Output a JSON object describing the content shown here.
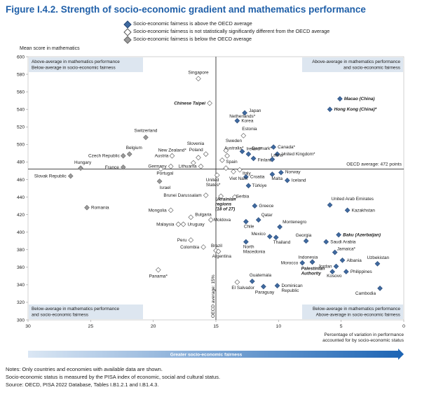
{
  "figure": {
    "title": "Figure I.4.2. Strength of socio-economic gradient and mathematics performance"
  },
  "legend": [
    {
      "label": "Socio-economic fairness is above the OECD average",
      "color": "#3f6aa0"
    },
    {
      "label": "Socio-economic fairness is not statistically significantly different from the OECD average",
      "color": "#ffffff"
    },
    {
      "label": "Socio-economic fairness is below the OECD average",
      "color": "#9a9a9a"
    }
  ],
  "notes": [
    "Notes: Only countries and economies with available data are shown.",
    "Socio-economic status is measured by the PISA index of economic, social and cultural status.",
    "Source: OECD, PISA 2022 Database, Tables I.B1.2.1 and I.B1.4.3."
  ],
  "chart_data": {
    "type": "scatter",
    "ylabel": "Mean score in mathematics",
    "xlabel": "Percentage of variation in performance accounted for by socio-economic status",
    "arrow_label": "Greater socio-economic fairness",
    "xlim": [
      30,
      0
    ],
    "ylim": [
      300,
      600
    ],
    "x_ticks": [
      30,
      25,
      20,
      15,
      10,
      5,
      0
    ],
    "y_ticks": [
      300,
      320,
      340,
      360,
      380,
      400,
      420,
      440,
      460,
      480,
      500,
      520,
      540,
      560,
      580,
      600
    ],
    "reference_lines": {
      "oecd_mean_score": 472,
      "oecd_mean_score_label": "OECD average: 472 points",
      "oecd_variance": 15,
      "oecd_variance_label": "OECD average: 15%"
    },
    "quadrant_labels": {
      "top_left": [
        "Above-average in mathematics performance",
        "Below-average in socio-economic fairness"
      ],
      "top_right": [
        "Above-average in mathematics performance",
        "and socio-economic fairness"
      ],
      "bottom_left": [
        "Below-average in mathematics performance",
        "and socio-economic fairness"
      ],
      "bottom_right": [
        "Below-average in mathematics performance",
        "Above-average in socio-economic fairness"
      ]
    },
    "categories": [
      "above",
      "not_significant",
      "below"
    ],
    "points": [
      {
        "name": "Singapore",
        "x": 16.4,
        "y": 575,
        "c": "not_significant"
      },
      {
        "name": "Macao (China)",
        "x": 5.1,
        "y": 552,
        "c": "above"
      },
      {
        "name": "Hong Kong (China)*",
        "x": 5.9,
        "y": 540,
        "c": "above"
      },
      {
        "name": "Chinese Taipei",
        "x": 15.5,
        "y": 547,
        "c": "not_significant"
      },
      {
        "name": "Japan",
        "x": 12.7,
        "y": 536,
        "c": "above"
      },
      {
        "name": "Korea",
        "x": 13.3,
        "y": 527,
        "c": "above"
      },
      {
        "name": "Netherlands*",
        "x": 14.2,
        "y": 493,
        "c": "not_significant"
      },
      {
        "name": "Sweden",
        "x": 14.5,
        "y": 482,
        "c": "not_significant"
      },
      {
        "name": "Estonia",
        "x": 12.8,
        "y": 510,
        "c": "not_significant"
      },
      {
        "name": "Switzerland",
        "x": 20.6,
        "y": 508,
        "c": "below"
      },
      {
        "name": "Ireland*",
        "x": 12.9,
        "y": 492,
        "c": "above"
      },
      {
        "name": "Denmark*",
        "x": 12.4,
        "y": 489,
        "c": "above"
      },
      {
        "name": "Canada*",
        "x": 10.4,
        "y": 497,
        "c": "above"
      },
      {
        "name": "United Kingdom*",
        "x": 10.1,
        "y": 489,
        "c": "above"
      },
      {
        "name": "Australia*",
        "x": 14.1,
        "y": 487,
        "c": "not_significant"
      },
      {
        "name": "Finland",
        "x": 12.0,
        "y": 484,
        "c": "above"
      },
      {
        "name": "Slovenia",
        "x": 16.4,
        "y": 485,
        "c": "not_significant"
      },
      {
        "name": "Belgium",
        "x": 21.9,
        "y": 489,
        "c": "below"
      },
      {
        "name": "Czech Republic",
        "x": 22.4,
        "y": 487,
        "c": "below"
      },
      {
        "name": "New Zealand*",
        "x": 16.8,
        "y": 479,
        "c": "not_significant"
      },
      {
        "name": "Poland",
        "x": 15.8,
        "y": 489,
        "c": "not_significant"
      },
      {
        "name": "Austria",
        "x": 18.5,
        "y": 487,
        "c": "not_significant"
      },
      {
        "name": "Hungary",
        "x": 25.8,
        "y": 473,
        "c": "below"
      },
      {
        "name": "France",
        "x": 22.4,
        "y": 474,
        "c": "below"
      },
      {
        "name": "Germany",
        "x": 18.6,
        "y": 475,
        "c": "not_significant"
      },
      {
        "name": "Lithuania",
        "x": 16.2,
        "y": 475,
        "c": "not_significant"
      },
      {
        "name": "Spain",
        "x": 14.2,
        "y": 473,
        "c": "not_significant"
      },
      {
        "name": "Latvia*",
        "x": 10.5,
        "y": 483,
        "c": "above"
      },
      {
        "name": "Portugal",
        "x": 19.4,
        "y": 472,
        "c": "not_significant"
      },
      {
        "name": "Slovak Republic",
        "x": 26.6,
        "y": 464,
        "c": "below"
      },
      {
        "name": "Italy",
        "x": 13.1,
        "y": 471,
        "c": "not_significant"
      },
      {
        "name": "Norway",
        "x": 9.8,
        "y": 468,
        "c": "above"
      },
      {
        "name": "United States*",
        "x": 14.9,
        "y": 465,
        "c": "not_significant"
      },
      {
        "name": "Israel",
        "x": 19.5,
        "y": 458,
        "c": "below"
      },
      {
        "name": "Malta",
        "x": 10.5,
        "y": 466,
        "c": "above"
      },
      {
        "name": "Iceland",
        "x": 9.3,
        "y": 459,
        "c": "above"
      },
      {
        "name": "Croatia",
        "x": 12.6,
        "y": 463,
        "c": "above"
      },
      {
        "name": "Viet Nam",
        "x": 13.6,
        "y": 469,
        "c": "not_significant"
      },
      {
        "name": "Türkiye",
        "x": 12.4,
        "y": 453,
        "c": "above"
      },
      {
        "name": "Brunei Darussalam",
        "x": 15.8,
        "y": 442,
        "c": "not_significant"
      },
      {
        "name": "Serbia",
        "x": 13.5,
        "y": 440,
        "c": "not_significant"
      },
      {
        "name": "United Arab Emirates",
        "x": 5.9,
        "y": 431,
        "c": "above"
      },
      {
        "name": "Romania",
        "x": 25.3,
        "y": 428,
        "c": "below"
      },
      {
        "name": "Greece",
        "x": 11.9,
        "y": 430,
        "c": "above"
      },
      {
        "name": "Kazakhstan",
        "x": 4.5,
        "y": 425,
        "c": "above"
      },
      {
        "name": "Mongolia",
        "x": 18.6,
        "y": 425,
        "c": "not_significant"
      },
      {
        "name": "Bulgaria",
        "x": 17.0,
        "y": 417,
        "c": "not_significant"
      },
      {
        "name": "Ukrainian regions (18 of 27)",
        "x": 14.6,
        "y": 441,
        "c": "not_significant"
      },
      {
        "name": "Qatar",
        "x": 11.6,
        "y": 414,
        "c": "above"
      },
      {
        "name": "Montenegro",
        "x": 9.9,
        "y": 406,
        "c": "above"
      },
      {
        "name": "Moldova",
        "x": 15.4,
        "y": 414,
        "c": "not_significant"
      },
      {
        "name": "Chile",
        "x": 12.6,
        "y": 412,
        "c": "above"
      },
      {
        "name": "Malaysia",
        "x": 18.0,
        "y": 409,
        "c": "not_significant"
      },
      {
        "name": "Uruguay",
        "x": 17.6,
        "y": 409,
        "c": "not_significant"
      },
      {
        "name": "Mexico",
        "x": 10.7,
        "y": 395,
        "c": "above"
      },
      {
        "name": "Georgia",
        "x": 7.8,
        "y": 390,
        "c": "above"
      },
      {
        "name": "Baku (Azerbaijan)",
        "x": 5.2,
        "y": 397,
        "c": "above"
      },
      {
        "name": "Thailand",
        "x": 10.2,
        "y": 394,
        "c": "above"
      },
      {
        "name": "Saudi Arabia",
        "x": 6.2,
        "y": 389,
        "c": "above"
      },
      {
        "name": "Peru",
        "x": 17.0,
        "y": 391,
        "c": "not_significant"
      },
      {
        "name": "North Macedonia",
        "x": 12.6,
        "y": 389,
        "c": "above"
      },
      {
        "name": "Colombia",
        "x": 16.0,
        "y": 383,
        "c": "not_significant"
      },
      {
        "name": "Brazil",
        "x": 15.0,
        "y": 379,
        "c": "not_significant"
      },
      {
        "name": "Jamaica*",
        "x": 5.5,
        "y": 377,
        "c": "above"
      },
      {
        "name": "Argentina",
        "x": 14.8,
        "y": 378,
        "c": "not_significant"
      },
      {
        "name": "Indonesia",
        "x": 7.3,
        "y": 366,
        "c": "above"
      },
      {
        "name": "Albania",
        "x": 4.9,
        "y": 368,
        "c": "above"
      },
      {
        "name": "Uzbekistan",
        "x": 2.1,
        "y": 364,
        "c": "above"
      },
      {
        "name": "Morocco",
        "x": 8.1,
        "y": 365,
        "c": "above"
      },
      {
        "name": "Jordan",
        "x": 5.4,
        "y": 361,
        "c": "above"
      },
      {
        "name": "Palestinian Authority",
        "x": 7.3,
        "y": 366,
        "c": "above"
      },
      {
        "name": "Panama*",
        "x": 19.6,
        "y": 357,
        "c": "not_significant"
      },
      {
        "name": "Philippines",
        "x": 4.6,
        "y": 355,
        "c": "above"
      },
      {
        "name": "Kosovo",
        "x": 5.7,
        "y": 355,
        "c": "above"
      },
      {
        "name": "Guatemala",
        "x": 12.1,
        "y": 344,
        "c": "above"
      },
      {
        "name": "El Salvador",
        "x": 13.3,
        "y": 343,
        "c": "not_significant"
      },
      {
        "name": "Dominican Republic",
        "x": 10.1,
        "y": 339,
        "c": "above"
      },
      {
        "name": "Paraguay",
        "x": 11.2,
        "y": 338,
        "c": "above"
      },
      {
        "name": "Cambodia",
        "x": 1.9,
        "y": 336,
        "c": "above"
      }
    ]
  }
}
